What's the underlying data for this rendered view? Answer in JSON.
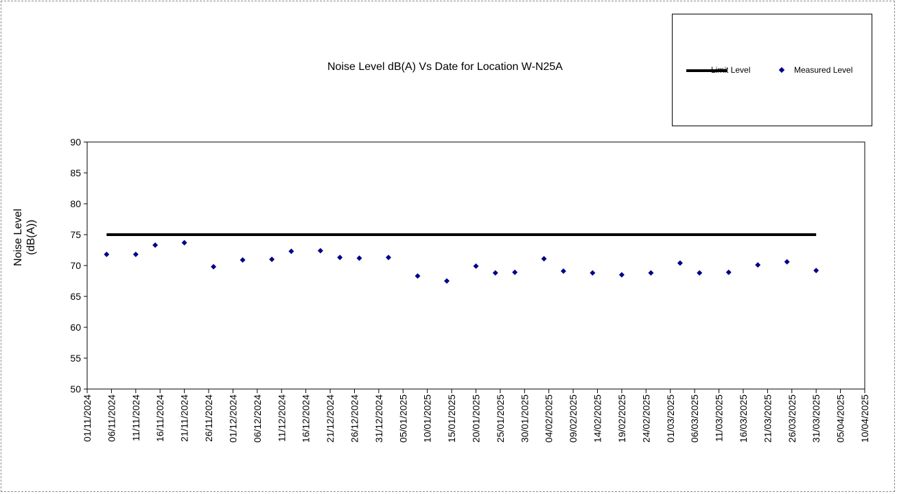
{
  "chart_data": {
    "type": "scatter",
    "title": "Noise Level dB(A) Vs Date for Location W-N25A",
    "ylabel": "Noise Level (dB(A))",
    "ylabel_lines": [
      "Noise Level",
      "(dB(A))"
    ],
    "xlabel": "",
    "ylim": [
      50,
      90
    ],
    "yticks": [
      50,
      55,
      60,
      65,
      70,
      75,
      80,
      85,
      90
    ],
    "xlim": [
      "01/11/2024",
      "10/04/2025"
    ],
    "xticks": [
      "01/11/2024",
      "06/11/2024",
      "11/11/2024",
      "16/11/2024",
      "21/11/2024",
      "26/11/2024",
      "01/12/2024",
      "06/12/2024",
      "11/12/2024",
      "16/12/2024",
      "21/12/2024",
      "26/12/2024",
      "31/12/2024",
      "05/01/2025",
      "10/01/2025",
      "15/01/2025",
      "20/01/2025",
      "25/01/2025",
      "30/01/2025",
      "04/02/2025",
      "09/02/2025",
      "14/02/2025",
      "19/02/2025",
      "24/02/2025",
      "01/03/2025",
      "06/03/2025",
      "11/03/2025",
      "16/03/2025",
      "21/03/2025",
      "26/03/2025",
      "31/03/2025",
      "05/04/2025",
      "10/04/2025"
    ],
    "grid": false,
    "legend_position": "top-right",
    "series": [
      {
        "name": "Limit Level",
        "kind": "line",
        "color": "#000000",
        "x": [
          "05/11/2024",
          "31/03/2025"
        ],
        "y": [
          75,
          75
        ]
      },
      {
        "name": "Measured Level",
        "kind": "scatter",
        "color": "#00008b",
        "x": [
          "05/11/2024",
          "11/11/2024",
          "15/11/2024",
          "21/11/2024",
          "27/11/2024",
          "03/12/2024",
          "09/12/2024",
          "13/12/2024",
          "19/12/2024",
          "23/12/2024",
          "27/12/2024",
          "02/01/2025",
          "08/01/2025",
          "14/01/2025",
          "20/01/2025",
          "24/01/2025",
          "28/01/2025",
          "03/02/2025",
          "07/02/2025",
          "13/02/2025",
          "19/02/2025",
          "25/02/2025",
          "03/03/2025",
          "07/03/2025",
          "13/03/2025",
          "19/03/2025",
          "25/03/2025",
          "31/03/2025"
        ],
        "y": [
          71.8,
          71.8,
          73.3,
          73.7,
          69.8,
          70.9,
          71.0,
          72.3,
          72.4,
          71.3,
          71.2,
          71.3,
          68.3,
          67.5,
          69.9,
          68.8,
          68.9,
          71.1,
          69.1,
          68.8,
          68.5,
          68.8,
          70.4,
          68.8,
          68.9,
          70.1,
          70.6,
          69.2
        ]
      }
    ]
  }
}
